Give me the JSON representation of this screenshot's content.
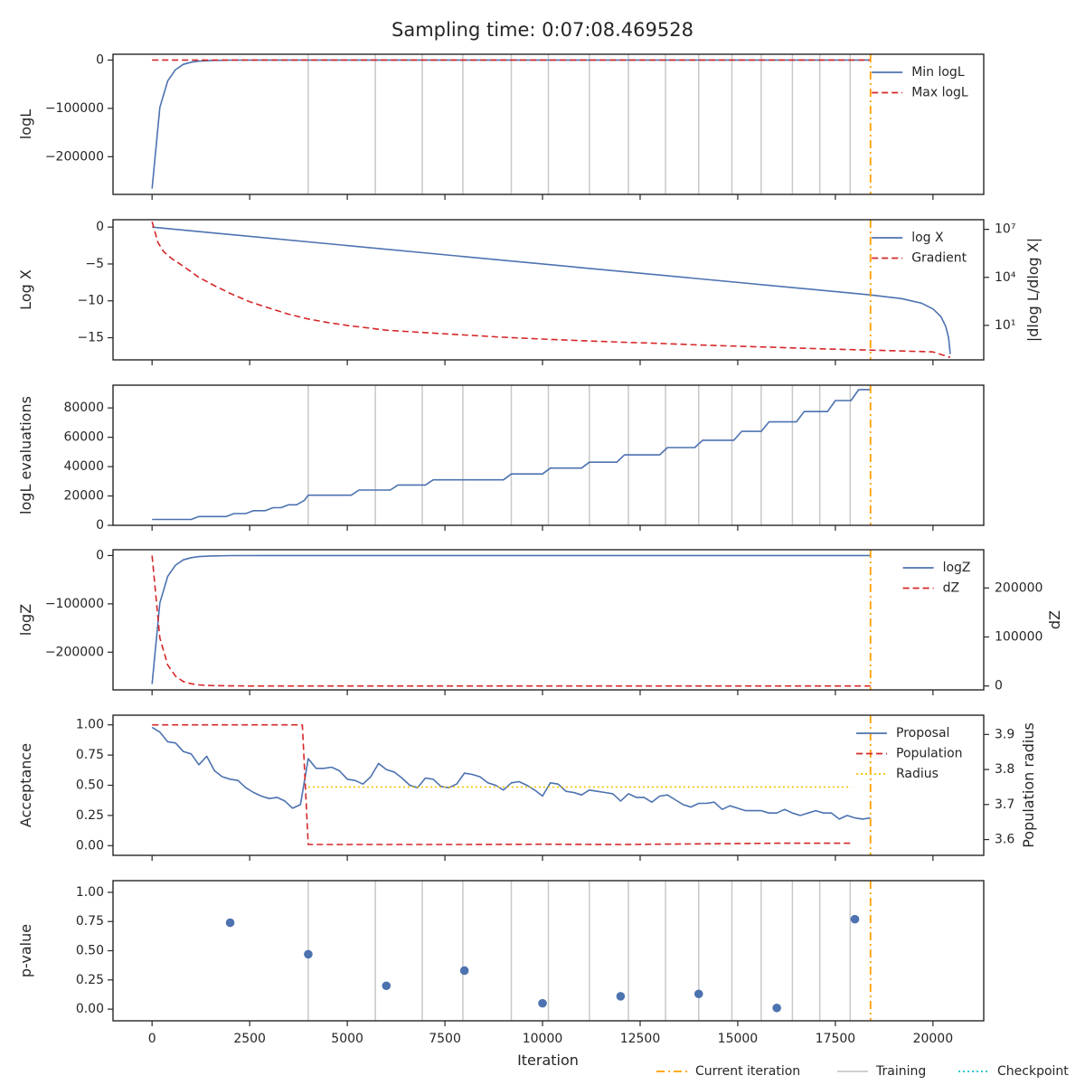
{
  "title": "Sampling time: 0:07:08.469528",
  "xlabel": "Iteration",
  "x_ticks": [
    0,
    2500,
    5000,
    7500,
    10000,
    12500,
    15000,
    17500,
    20000
  ],
  "x_tick_labels": [
    "0",
    "2500",
    "5000",
    "7500",
    "10000",
    "12500",
    "15000",
    "17500",
    "20000"
  ],
  "xlim": [
    -1000,
    21300
  ],
  "current_iteration": 18400,
  "training_iterations": [
    4000,
    5720,
    6920,
    7960,
    9200,
    10150,
    11200,
    12200,
    13150,
    14000,
    14850,
    15600,
    16400,
    17100,
    17880
  ],
  "colors": {
    "blue": "#4c72b0",
    "red": "#d62728",
    "orange": "#ff9f00",
    "grey": "#c8c8c8",
    "gold": "#f2c200",
    "cyan": "#17becf"
  },
  "bottom_legend": [
    {
      "label": "Current iteration",
      "style": "dashdot",
      "color": "#ff9f00"
    },
    {
      "label": "Training",
      "style": "solid",
      "color": "#c8c8c8"
    },
    {
      "label": "Checkpoint",
      "style": "dotted",
      "color": "#17becf"
    }
  ],
  "chart_data": [
    {
      "type": "line",
      "ylabel": "logL",
      "ylim": [
        -278000,
        12000
      ],
      "yticks": [
        0,
        -100000,
        -200000
      ],
      "ytick_labels": [
        "0",
        "−100000",
        "−200000"
      ],
      "legend": "upper-right",
      "series": [
        {
          "name": "Min logL",
          "color": "#4c72b0",
          "style": "solid",
          "x": [
            0,
            200,
            400,
            600,
            800,
            1000,
            1200,
            1500,
            2000,
            3000,
            18400
          ],
          "y": [
            -266000,
            -98000,
            -43000,
            -20000,
            -9000,
            -4500,
            -2200,
            -900,
            -200,
            0,
            0
          ]
        },
        {
          "name": "Max logL",
          "color": "#d62728",
          "style": "dashed",
          "x": [
            0,
            18400
          ],
          "y": [
            0,
            0
          ]
        }
      ]
    },
    {
      "type": "line",
      "ylabel": "Log X",
      "ylim": [
        -18,
        1
      ],
      "yticks": [
        0,
        -5,
        -10,
        -15
      ],
      "ytick_labels": [
        "0",
        "−5",
        "−10",
        "−15"
      ],
      "y2label": "|dlog L/dlog X|",
      "y2_log": true,
      "y2lim": [
        0.07,
        40000000.0
      ],
      "y2ticks": [
        10,
        10000,
        10000000
      ],
      "y2tick_labels": [
        "10¹",
        "10⁴",
        "10⁷"
      ],
      "legend": "upper-right",
      "series": [
        {
          "name": "log X",
          "color": "#4c72b0",
          "style": "solid",
          "axis": "left",
          "x": [
            0,
            18400,
            19200,
            19700,
            20000,
            20200,
            20330,
            20400,
            20430,
            20440
          ],
          "y": [
            0,
            -9.2,
            -9.7,
            -10.3,
            -11.1,
            -12.1,
            -13.5,
            -15.0,
            -16.5,
            -17.2
          ]
        },
        {
          "name": "Gradient",
          "color": "#d62728",
          "style": "dashed",
          "axis": "right",
          "x": [
            0,
            150,
            300,
            500,
            800,
            1200,
            1600,
            2000,
            2500,
            3000,
            3500,
            4000,
            4500,
            5000,
            6000,
            7000,
            8000,
            9000,
            10000,
            11000,
            12000,
            13000,
            14000,
            15000,
            16000,
            17000,
            18000,
            19000,
            20000,
            20440
          ],
          "y": [
            30000000,
            1500000,
            400000,
            150000,
            50000,
            10000,
            3000,
            1000,
            300,
            120,
            50,
            25,
            15,
            10,
            5,
            3.5,
            2.5,
            1.8,
            1.4,
            1.1,
            0.9,
            0.75,
            0.6,
            0.5,
            0.42,
            0.35,
            0.3,
            0.26,
            0.22,
            0.1
          ]
        }
      ]
    },
    {
      "type": "line",
      "ylabel": "logL evaluations",
      "ylim": [
        0,
        95500
      ],
      "yticks": [
        0,
        20000,
        40000,
        60000,
        80000
      ],
      "ytick_labels": [
        "0",
        "20000",
        "40000",
        "60000",
        "80000"
      ],
      "series": [
        {
          "name": "",
          "color": "#4c72b0",
          "style": "solid",
          "x": [
            0,
            1000,
            1200,
            1900,
            2100,
            2400,
            2600,
            2900,
            3100,
            3300,
            3500,
            3700,
            3900,
            4000,
            4200,
            5100,
            5300,
            6100,
            6300,
            7000,
            7200,
            8000,
            8200,
            9000,
            9200,
            10000,
            10200,
            11000,
            11200,
            11900,
            12100,
            13000,
            13200,
            13900,
            14100,
            14900,
            15100,
            15600,
            15800,
            16500,
            16700,
            17300,
            17500,
            17900,
            18100,
            18400
          ],
          "y": [
            4000,
            4000,
            6000,
            6000,
            8000,
            8000,
            10000,
            10000,
            12000,
            12000,
            14000,
            14000,
            17000,
            20500,
            20500,
            20500,
            24000,
            24000,
            27500,
            27500,
            31000,
            31000,
            31000,
            31000,
            35000,
            35000,
            39000,
            39000,
            43000,
            43000,
            48000,
            48000,
            53000,
            53000,
            58000,
            58000,
            64000,
            64000,
            70500,
            70500,
            77500,
            77500,
            85000,
            85000,
            92500,
            92500
          ]
        }
      ]
    },
    {
      "type": "line",
      "ylabel": "logZ",
      "ylim": [
        -278000,
        12000
      ],
      "yticks": [
        0,
        -100000,
        -200000
      ],
      "ytick_labels": [
        "0",
        "−100000",
        "−200000"
      ],
      "y2label": "dZ",
      "y2lim": [
        -8000,
        278000
      ],
      "y2ticks": [
        0,
        100000,
        200000
      ],
      "y2tick_labels": [
        "0",
        "100000",
        "200000"
      ],
      "legend": "upper-right",
      "series": [
        {
          "name": "logZ",
          "color": "#4c72b0",
          "style": "solid",
          "axis": "left",
          "x": [
            0,
            200,
            400,
            600,
            800,
            1000,
            1200,
            1500,
            2000,
            3000,
            18400
          ],
          "y": [
            -266000,
            -98000,
            -43000,
            -20000,
            -9000,
            -4500,
            -2200,
            -900,
            -200,
            0,
            0
          ]
        },
        {
          "name": "dZ",
          "color": "#d62728",
          "style": "dashed",
          "axis": "right",
          "x": [
            0,
            200,
            400,
            600,
            800,
            1000,
            1200,
            1500,
            2000,
            3000,
            18400
          ],
          "y": [
            266000,
            98000,
            43000,
            20000,
            9000,
            4500,
            2200,
            900,
            200,
            0,
            0
          ]
        }
      ]
    },
    {
      "type": "line",
      "ylabel": "Acceptance",
      "ylim": [
        -0.08,
        1.08
      ],
      "yticks": [
        0,
        0.25,
        0.5,
        0.75,
        1.0
      ],
      "ytick_labels": [
        "0.00",
        "0.25",
        "0.50",
        "0.75",
        "1.00"
      ],
      "y2label": "Population radius",
      "y2lim": [
        3.555,
        3.955
      ],
      "y2ticks": [
        3.6,
        3.7,
        3.8,
        3.9
      ],
      "y2tick_labels": [
        "3.6",
        "3.7",
        "3.8",
        "3.9"
      ],
      "legend": "upper-right",
      "series": [
        {
          "name": "Proposal",
          "color": "#4c72b0",
          "style": "solid",
          "axis": "left",
          "x": [
            0,
            200,
            400,
            600,
            800,
            1000,
            1200,
            1400,
            1600,
            1800,
            2000,
            2200,
            2400,
            2600,
            2800,
            3000,
            3200,
            3400,
            3600,
            3800,
            4000,
            4200,
            4400,
            4600,
            4800,
            5000,
            5200,
            5400,
            5600,
            5800,
            6000,
            6200,
            6400,
            6600,
            6800,
            7000,
            7200,
            7400,
            7600,
            7800,
            8000,
            8200,
            8400,
            8600,
            8800,
            9000,
            9200,
            9400,
            9600,
            9800,
            10000,
            10200,
            10400,
            10600,
            10800,
            11000,
            11200,
            11400,
            11600,
            11800,
            12000,
            12200,
            12400,
            12600,
            12800,
            13000,
            13200,
            13400,
            13600,
            13800,
            14000,
            14200,
            14400,
            14600,
            14800,
            15000,
            15200,
            15400,
            15600,
            15800,
            16000,
            16200,
            16400,
            16600,
            16800,
            17000,
            17200,
            17400,
            17600,
            17800,
            18000,
            18200,
            18400
          ],
          "y": [
            0.98,
            0.94,
            0.86,
            0.85,
            0.78,
            0.76,
            0.67,
            0.74,
            0.62,
            0.57,
            0.55,
            0.54,
            0.48,
            0.44,
            0.41,
            0.39,
            0.4,
            0.37,
            0.31,
            0.34,
            0.72,
            0.64,
            0.64,
            0.65,
            0.62,
            0.55,
            0.54,
            0.51,
            0.57,
            0.68,
            0.63,
            0.61,
            0.56,
            0.5,
            0.48,
            0.56,
            0.55,
            0.49,
            0.48,
            0.51,
            0.6,
            0.59,
            0.57,
            0.52,
            0.5,
            0.46,
            0.52,
            0.53,
            0.5,
            0.46,
            0.41,
            0.52,
            0.51,
            0.45,
            0.44,
            0.42,
            0.46,
            0.45,
            0.44,
            0.43,
            0.37,
            0.43,
            0.4,
            0.4,
            0.36,
            0.41,
            0.42,
            0.38,
            0.34,
            0.32,
            0.35,
            0.35,
            0.36,
            0.3,
            0.33,
            0.31,
            0.29,
            0.29,
            0.29,
            0.27,
            0.27,
            0.3,
            0.27,
            0.25,
            0.27,
            0.29,
            0.27,
            0.27,
            0.22,
            0.25,
            0.23,
            0.22,
            0.23
          ]
        },
        {
          "name": "Population",
          "color": "#d62728",
          "style": "dashed",
          "axis": "left",
          "x": [
            0,
            3850,
            4000,
            6000,
            8000,
            10000,
            12000,
            14000,
            16000,
            17900
          ],
          "y": [
            1.0,
            1.0,
            0.01,
            0.01,
            0.01,
            0.012,
            0.01,
            0.015,
            0.02,
            0.02
          ]
        },
        {
          "name": "Radius",
          "color": "#f2c200",
          "style": "dotted",
          "axis": "right",
          "x": [
            4000,
            17900
          ],
          "y": [
            3.75,
            3.75
          ]
        }
      ]
    },
    {
      "type": "scatter",
      "ylabel": "p-value",
      "ylim": [
        -0.1,
        1.1
      ],
      "yticks": [
        0,
        0.25,
        0.5,
        0.75,
        1.0
      ],
      "ytick_labels": [
        "0.00",
        "0.25",
        "0.50",
        "0.75",
        "1.00"
      ],
      "series": [
        {
          "name": "",
          "color": "#4c72b0",
          "x": [
            2000,
            4000,
            6000,
            8000,
            10000,
            12000,
            14000,
            16000,
            18000
          ],
          "y": [
            0.74,
            0.47,
            0.2,
            0.33,
            0.05,
            0.11,
            0.13,
            0.01,
            0.77
          ]
        }
      ]
    }
  ]
}
